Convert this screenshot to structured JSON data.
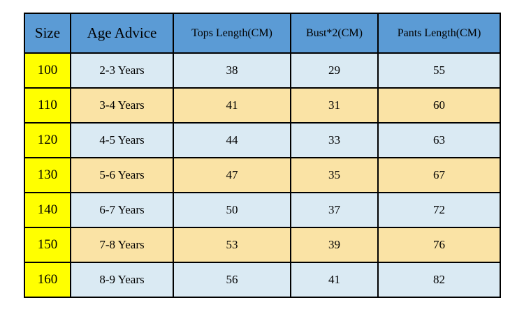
{
  "colors": {
    "page_bg": "#FFFFFF",
    "header_bg": "#5B9BD5",
    "size_column_bg": "#FFFF00",
    "row_blue_bg": "#DAEAF3",
    "row_tan_bg": "#FAE3A5",
    "border": "#000000",
    "text": "#000000"
  },
  "chart_data": {
    "type": "table",
    "columns": [
      "Size",
      "Age Advice",
      "Tops Length(CM)",
      "Bust*2(CM)",
      "Pants Length(CM)"
    ],
    "rows": [
      [
        "100",
        "2-3 Years",
        "38",
        "29",
        "55"
      ],
      [
        "110",
        "3-4 Years",
        "41",
        "31",
        "60"
      ],
      [
        "120",
        "4-5 Years",
        "44",
        "33",
        "63"
      ],
      [
        "130",
        "5-6 Years",
        "47",
        "35",
        "67"
      ],
      [
        "140",
        "6-7 Years",
        "50",
        "37",
        "72"
      ],
      [
        "150",
        "7-8 Years",
        "53",
        "39",
        "76"
      ],
      [
        "160",
        "8-9 Years",
        "56",
        "41",
        "82"
      ]
    ]
  }
}
